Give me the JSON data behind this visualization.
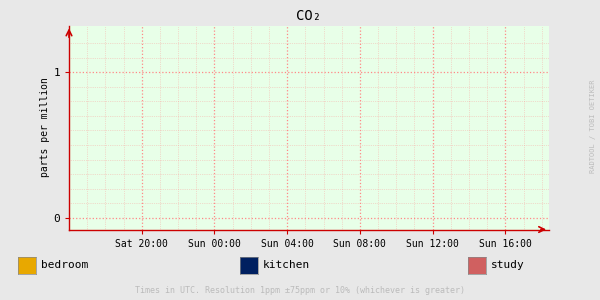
{
  "title": "CO₂",
  "ylabel": "parts per million",
  "background_color": "#e8e8e8",
  "plot_bg_color": "#e8ffe8",
  "grid_color": "#ff8888",
  "yticks": [
    0,
    1
  ],
  "ylim": [
    -0.08,
    1.32
  ],
  "xtick_labels": [
    "Sat 20:00",
    "Sun 00:00",
    "Sun 04:00",
    "Sun 08:00",
    "Sun 12:00",
    "Sun 16:00"
  ],
  "xtick_positions": [
    1,
    2,
    3,
    4,
    5,
    6
  ],
  "xlim": [
    0.0,
    6.6
  ],
  "legend_items": [
    {
      "label": "bedroom",
      "color": "#e8a800"
    },
    {
      "label": "kitchen",
      "color": "#002060"
    },
    {
      "label": "study",
      "color": "#d06060"
    }
  ],
  "footer_text": "Times in UTC. Resolution 1ppm ±75ppm or 10% (whichever is greater)",
  "watermark_text": "RADTOOL / TOBI OETIKER",
  "watermark_color": "#bbbbbb",
  "axis_color": "#cc0000",
  "ylabel_fontsize": 7,
  "title_fontsize": 10,
  "tick_fontsize": 7,
  "legend_fontsize": 8,
  "footer_fontsize": 6
}
